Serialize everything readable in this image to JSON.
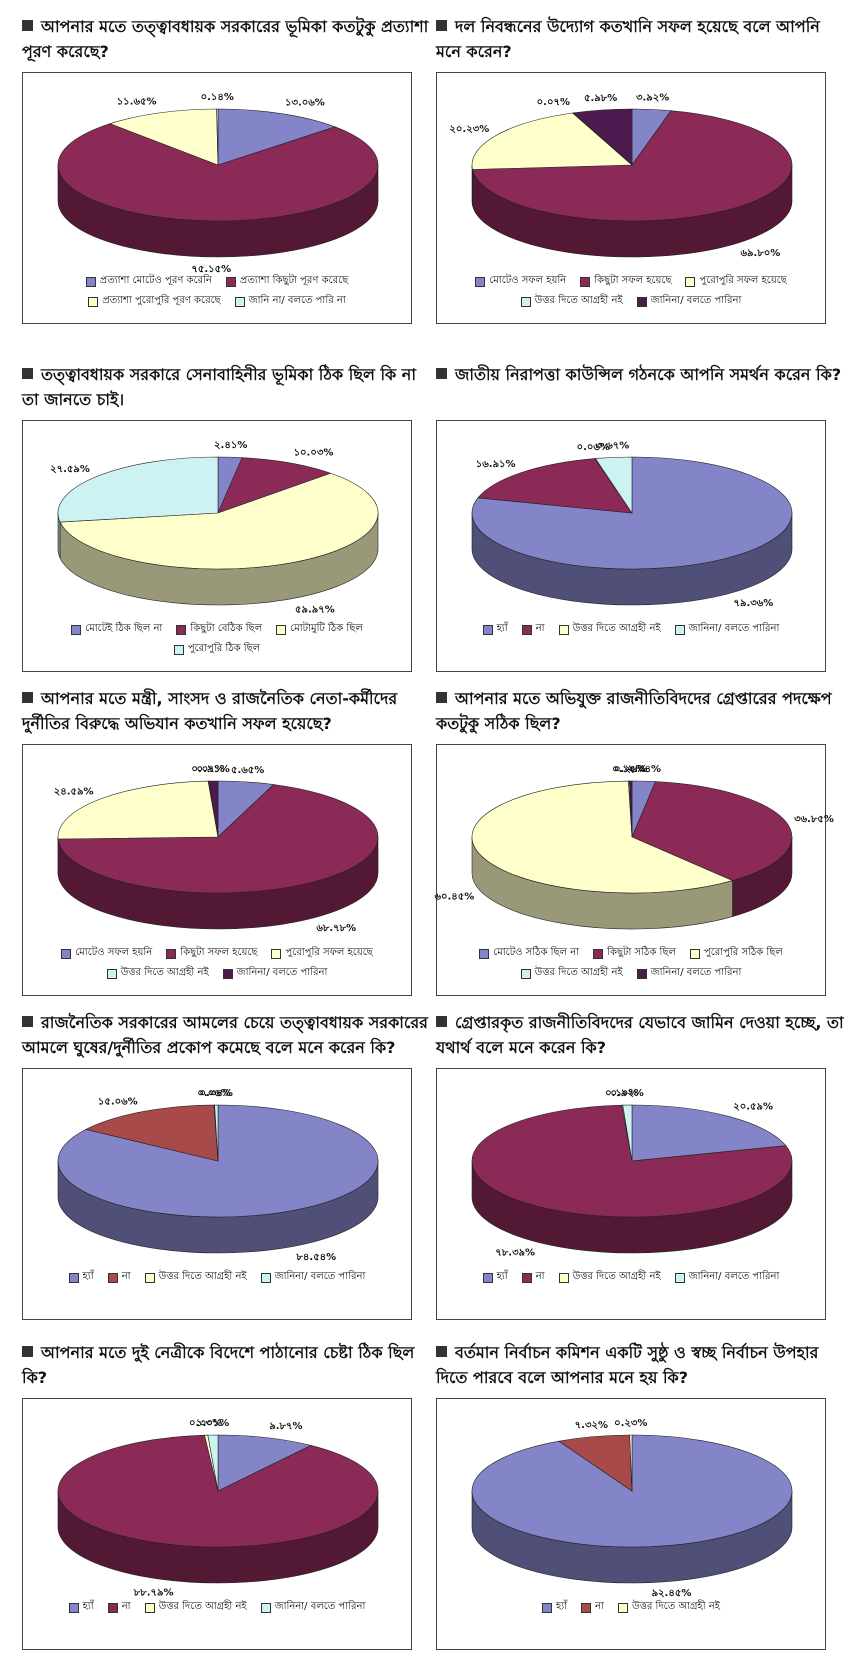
{
  "chart_data": [
    {
      "type": "pie",
      "title": "আপনার মতে তত্ত্বাবধায়ক সরকারের ভূমিকা কতটুকু প্রত্যাশা পূরণ করেছে?",
      "categories": [
        "প্রত্যাশা মোটেও পূরণ করেনি",
        "প্রত্যাশা কিছুটা পূরণ করেছে",
        "প্রত্যাশা পুরোপুরি পূরণ করেছে",
        "জানি না/ বলতে পারি না"
      ],
      "values": [
        13.06,
        75.15,
        11.65,
        0.14
      ],
      "value_labels": [
        "১৩.০৬%",
        "৭৫.১৫%",
        "১১.৬৫%",
        "০.১৪%"
      ],
      "colors": [
        "#8484c8",
        "#8b2a57",
        "#ffffcc",
        "#ccf2f2"
      ]
    },
    {
      "type": "pie",
      "title": "দল নিবন্ধনের উদ্যোগ কতখানি সফল হয়েছে বলে আপনি মনে করেন?",
      "categories": [
        "মোটেও সফল হয়নি",
        "কিছুটা সফল হয়েছে",
        "পুরোপুরি সফল হয়েছে",
        "উত্তর দিতে আগ্রহী নই",
        "জানিনা/ বলতে পারিনা"
      ],
      "values": [
        3.92,
        69.8,
        20.23,
        0.07,
        5.98
      ],
      "value_labels": [
        "৩.৯২%",
        "৬৯.৮০%",
        "২০.২৩%",
        "০.০৭%",
        "৫.৯৮%"
      ],
      "colors": [
        "#8484c8",
        "#8b2a57",
        "#ffffcc",
        "#ccf2f2",
        "#4d1a4f"
      ]
    },
    {
      "type": "pie",
      "title": "তত্ত্বাবধায়ক সরকারে সেনাবাহিনীর ভূমিকা ঠিক ছিল কি না তা জানতে চাই।",
      "categories": [
        "মোটেই ঠিক ছিল না",
        "কিছুটা বেঠিক ছিল",
        "মোটামুটি ঠিক ছিল",
        "পুরোপুরি ঠিক ছিল"
      ],
      "values": [
        2.41,
        10.03,
        59.97,
        27.59
      ],
      "value_labels": [
        "২.৪১%",
        "১০.০৩%",
        "৫৯.৯৭%",
        "২৭.৫৯%"
      ],
      "colors": [
        "#8484c8",
        "#8b2a57",
        "#ffffcc",
        "#ccf2f2"
      ]
    },
    {
      "type": "pie",
      "title": "জাতীয় নিরাপত্তা কাউন্সিল গঠনকে আপনি সমর্থন করেন কি?",
      "categories": [
        "হ্যাঁ",
        "না",
        "উত্তর দিতে আগ্রহী নই",
        "জানিনা/ বলতে পারিনা"
      ],
      "values": [
        79.36,
        16.91,
        0.06,
        3.67
      ],
      "value_labels": [
        "৭৯.৩৬%",
        "১৬.৯১%",
        "০.০৬%",
        "৩.৬৭%"
      ],
      "colors": [
        "#8484c8",
        "#8b2a57",
        "#ffffcc",
        "#ccf2f2"
      ]
    },
    {
      "type": "pie",
      "title": "আপনার মতে মন্ত্রী, সাংসদ ও রাজনৈতিক নেতা-কর্মীদের দুর্নীতির বিরুদ্ধে অভিযান কতখানি সফল হয়েছে?",
      "categories": [
        "মোটেও সফল হয়নি",
        "কিছুটা সফল হয়েছে",
        "পুরোপুরি সফল হয়েছে",
        "উত্তর দিতে আগ্রহী নই",
        "জানিনা/ বলতে পারিনা"
      ],
      "values": [
        5.65,
        68.78,
        24.59,
        0.07,
        0.91
      ],
      "value_labels": [
        "৫.৬৫%",
        "৬৮.৭৮%",
        "২৪.৫৯%",
        "০.০৭%",
        "০.৯১%"
      ],
      "colors": [
        "#8484c8",
        "#8b2a57",
        "#ffffcc",
        "#ccf2f2",
        "#4d1a4f"
      ]
    },
    {
      "type": "pie",
      "title": "আপনার মতে অভিযুক্ত রাজনীতিবিদদের গ্রেপ্তারের পদক্ষেপ কতটুকু সঠিক ছিল?",
      "categories": [
        "মোটেও সঠিক ছিল না",
        "কিছুটা সঠিক ছিল",
        "পুরোপুরি সঠিক ছিল",
        "উত্তর দিতে আগ্রহী নই",
        "জানিনা/ বলতে পারিনা"
      ],
      "values": [
        2.34,
        36.85,
        60.45,
        0.1,
        0.26
      ],
      "value_labels": [
        "২.৩৪%",
        "৩৬.৮৫%",
        "৬০.৪৫%",
        "০.১০%",
        "০.২৬%"
      ],
      "colors": [
        "#8484c8",
        "#8b2a57",
        "#ffffcc",
        "#ccf2f2",
        "#4d1a4f"
      ]
    },
    {
      "type": "pie",
      "title": "রাজনৈতিক সরকারের আমলের চেয়ে তত্ত্বাবধায়ক সরকারের আমলে ঘুষের/দুর্নীতির প্রকোপ কমেছে বলে মনে করেন কি?",
      "categories": [
        "হ্যাঁ",
        "না",
        "উত্তর দিতে আগ্রহী নই",
        "জানিনা/ বলতে পারিনা"
      ],
      "values": [
        84.54,
        15.06,
        0.06,
        0.34
      ],
      "value_labels": [
        "৮৪.৫৪%",
        "১৫.০৬%",
        "০.০৬%",
        "০.৩৪%"
      ],
      "colors": [
        "#8484c8",
        "#a84a4a",
        "#ffffcc",
        "#ccf2f2"
      ]
    },
    {
      "type": "pie",
      "title": "গ্রেপ্তারকৃত রাজনীতিবিদদের যেভাবে জামিন দেওয়া হচ্ছে, তা যথার্থ বলে মনে করেন কি?",
      "categories": [
        "হ্যাঁ",
        "না",
        "উত্তর দিতে আগ্রহী নই",
        "জানিনা/ বলতে পারিনা"
      ],
      "values": [
        20.59,
        78.39,
        0.1,
        0.92
      ],
      "value_labels": [
        "২০.৫৯%",
        "৭৮.৩৯%",
        "০.১০%",
        "০.৯২%"
      ],
      "colors": [
        "#8484c8",
        "#8b2a57",
        "#ffffcc",
        "#ccf2f2"
      ]
    },
    {
      "type": "pie",
      "title": "আপনার মতে দুই নেত্রীকে বিদেশে পাঠানোর চেষ্টা ঠিক ছিল কি?",
      "categories": [
        "হ্যাঁ",
        "না",
        "উত্তর দিতে আগ্রহী নই",
        "জানিনা/ বলতে পারিনা"
      ],
      "values": [
        9.87,
        88.79,
        0.33,
        1.01
      ],
      "value_labels": [
        "৯.৮৭%",
        "৮৮.৭৯%",
        "০.৩৩%",
        "১.০১%"
      ],
      "colors": [
        "#8484c8",
        "#8b2a57",
        "#ffffcc",
        "#ccf2f2"
      ]
    },
    {
      "type": "pie",
      "title": "বর্তমান নির্বাচন কমিশন একটি সুষ্ঠু ও স্বচ্ছ নির্বাচন উপহার দিতে পারবে বলে আপনার মনে হয় কি?",
      "categories": [
        "হ্যাঁ",
        "না",
        "উত্তর দিতে আগ্রহী নই"
      ],
      "values": [
        92.45,
        7.32,
        0.23
      ],
      "value_labels": [
        "৯২.৪৫%",
        "৭.৩২%",
        "০.২৩%"
      ],
      "colors": [
        "#8484c8",
        "#a84a4a",
        "#ffffcc"
      ]
    }
  ]
}
